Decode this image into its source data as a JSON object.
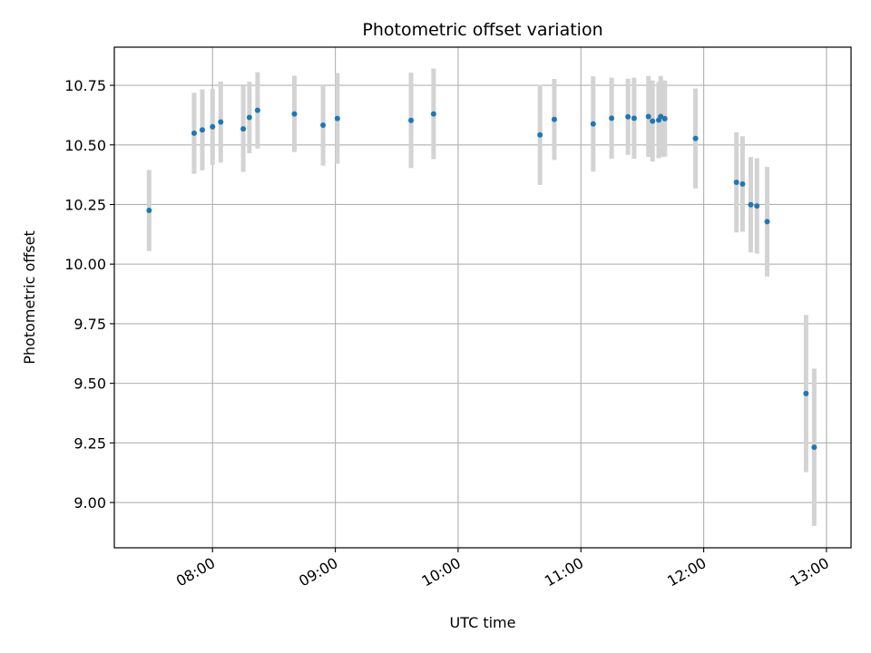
{
  "chart_data": {
    "type": "scatter",
    "title": "Photometric offset variation",
    "xlabel": "UTC time",
    "ylabel": "Photometric offset",
    "x_axis": "time",
    "xlim": [
      "07:12",
      "13:12"
    ],
    "ylim": [
      8.81,
      10.91
    ],
    "xticks": [
      "08:00",
      "09:00",
      "10:00",
      "11:00",
      "12:00",
      "13:00"
    ],
    "yticks": [
      "9.00",
      "9.25",
      "9.50",
      "9.75",
      "10.00",
      "10.25",
      "10.50",
      "10.75"
    ],
    "grid": true,
    "point_color": "#1f77b4",
    "errorbar_color": "#d3d3d3",
    "series": [
      {
        "points": [
          {
            "x": "07:29",
            "y": 10.225,
            "err": 0.17
          },
          {
            "x": "07:51",
            "y": 10.549,
            "err": 0.17
          },
          {
            "x": "07:55",
            "y": 10.563,
            "err": 0.17
          },
          {
            "x": "08:00",
            "y": 10.576,
            "err": 0.16
          },
          {
            "x": "08:04",
            "y": 10.596,
            "err": 0.17
          },
          {
            "x": "08:15",
            "y": 10.567,
            "err": 0.18
          },
          {
            "x": "08:18",
            "y": 10.615,
            "err": 0.15
          },
          {
            "x": "08:22",
            "y": 10.645,
            "err": 0.16
          },
          {
            "x": "08:40",
            "y": 10.63,
            "err": 0.16
          },
          {
            "x": "08:54",
            "y": 10.583,
            "err": 0.17
          },
          {
            "x": "09:01",
            "y": 10.611,
            "err": 0.19
          },
          {
            "x": "09:37",
            "y": 10.603,
            "err": 0.2
          },
          {
            "x": "09:48",
            "y": 10.63,
            "err": 0.19
          },
          {
            "x": "10:40",
            "y": 10.542,
            "err": 0.21
          },
          {
            "x": "10:47",
            "y": 10.607,
            "err": 0.17
          },
          {
            "x": "11:06",
            "y": 10.588,
            "err": 0.2
          },
          {
            "x": "11:15",
            "y": 10.612,
            "err": 0.17
          },
          {
            "x": "11:23",
            "y": 10.618,
            "err": 0.16
          },
          {
            "x": "11:26",
            "y": 10.612,
            "err": 0.17
          },
          {
            "x": "11:33",
            "y": 10.619,
            "err": 0.17
          },
          {
            "x": "11:35",
            "y": 10.6,
            "err": 0.17
          },
          {
            "x": "11:38",
            "y": 10.604,
            "err": 0.16
          },
          {
            "x": "11:39",
            "y": 10.619,
            "err": 0.17
          },
          {
            "x": "11:41",
            "y": 10.61,
            "err": 0.16
          },
          {
            "x": "11:56",
            "y": 10.527,
            "err": 0.21
          },
          {
            "x": "12:16",
            "y": 10.343,
            "err": 0.21
          },
          {
            "x": "12:19",
            "y": 10.336,
            "err": 0.2
          },
          {
            "x": "12:23",
            "y": 10.249,
            "err": 0.2
          },
          {
            "x": "12:26",
            "y": 10.244,
            "err": 0.2
          },
          {
            "x": "12:31",
            "y": 10.178,
            "err": 0.23
          },
          {
            "x": "12:50",
            "y": 9.457,
            "err": 0.33
          },
          {
            "x": "12:54",
            "y": 9.232,
            "err": 0.33
          }
        ]
      }
    ]
  }
}
